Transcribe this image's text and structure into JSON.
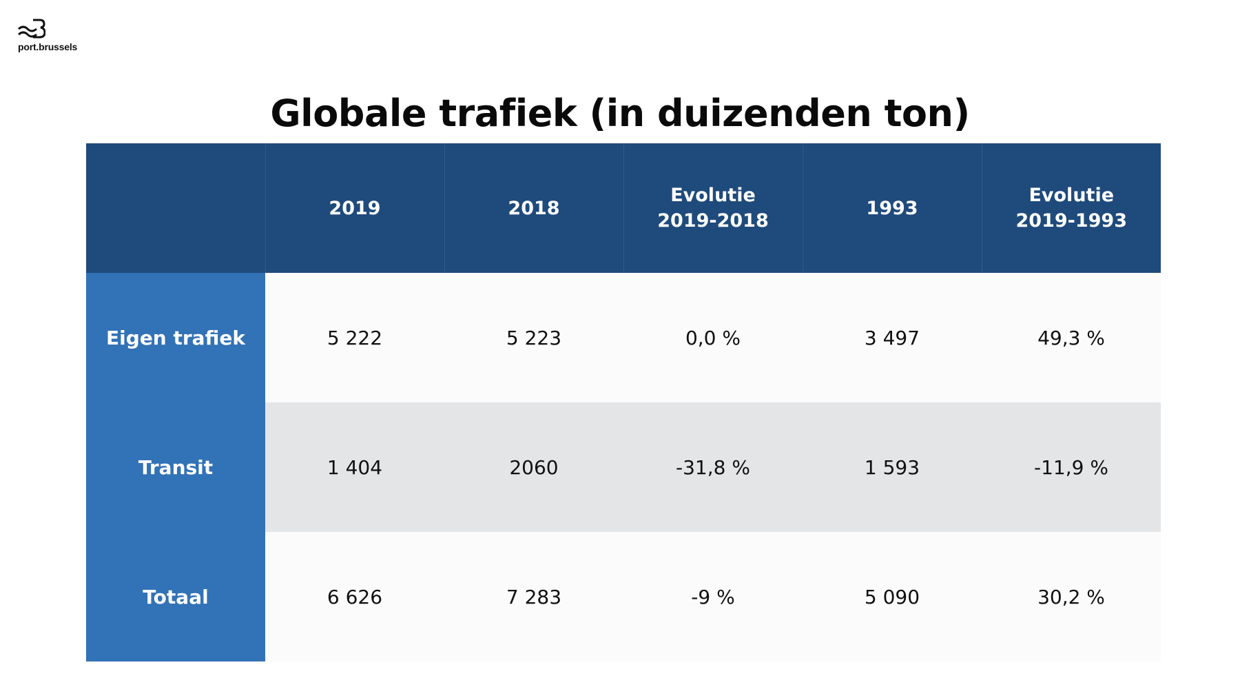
{
  "logo": {
    "text": "port.brussels"
  },
  "title": "Globale trafiek (in duizenden ton)",
  "table": {
    "corner": "",
    "columns": [
      {
        "line1": "2019",
        "line2": ""
      },
      {
        "line1": "2018",
        "line2": ""
      },
      {
        "line1": "Evolutie",
        "line2": "2019-2018"
      },
      {
        "line1": "1993",
        "line2": ""
      },
      {
        "line1": "Evolutie",
        "line2": "2019-1993"
      }
    ],
    "rows": [
      {
        "label": "Eigen trafiek",
        "cells": [
          "5 222",
          "5 223",
          "0,0 %",
          "3 497",
          "49,3 %"
        ]
      },
      {
        "label": "Transit",
        "cells": [
          "1 404",
          "2060",
          "-31,8 %",
          "1 593",
          "-11,9 %"
        ]
      },
      {
        "label": "Totaal",
        "cells": [
          "6 626",
          "7 283",
          "-9 %",
          "5 090",
          "30,2 %"
        ]
      }
    ]
  },
  "colors": {
    "header_bg": "#1f4a7c",
    "row_label_bg": "#3272b6",
    "row_shaded_bg": "#e4e5e7",
    "row_light_bg": "#fbfbfc"
  }
}
